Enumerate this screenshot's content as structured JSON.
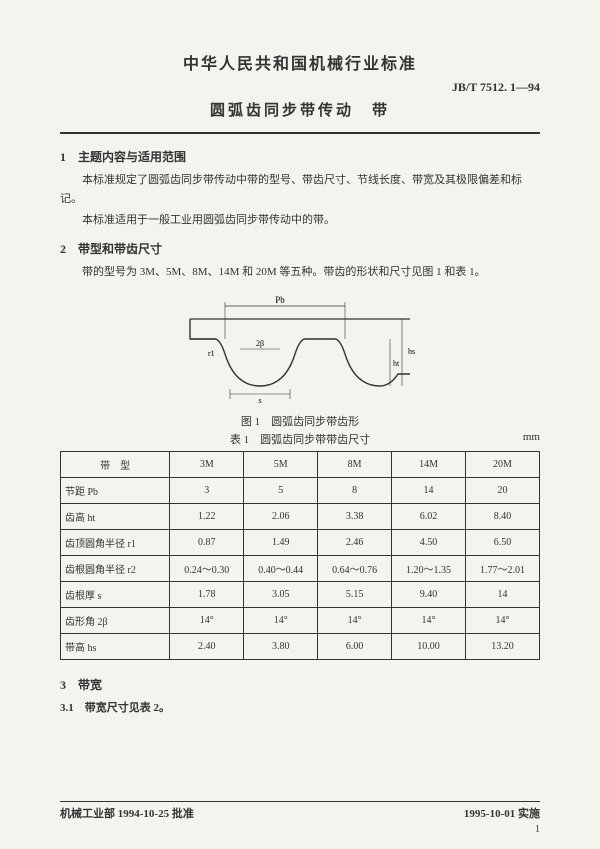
{
  "header": {
    "title_main": "中华人民共和国机械行业标准",
    "doc_code": "JB/T 7512. 1—94",
    "title_sub": "圆弧齿同步带传动　带"
  },
  "section1": {
    "head": "1　主题内容与适用范围",
    "p1": "本标准规定了圆弧齿同步带传动中带的型号、带齿尺寸、节线长度、带宽及其极限偏差和标记。",
    "p2": "本标准适用于一般工业用圆弧齿同步带传动中的带。"
  },
  "section2": {
    "head": "2　带型和带齿尺寸",
    "p1": "带的型号为 3M、5M、8M、14M 和 20M 等五种。带齿的形状和尺寸见图 1 和表 1。"
  },
  "figure": {
    "caption": "图 1　圆弧齿同步带齿形",
    "labels": {
      "pb": "Pb",
      "beta2": "2β",
      "s": "s",
      "ht": "ht",
      "hs": "hs",
      "r1": "r1",
      "r2": "r2"
    }
  },
  "table1": {
    "caption": "表 1　圆弧齿同步带带齿尺寸",
    "unit": "mm",
    "columns": [
      "带　型",
      "3M",
      "5M",
      "8M",
      "14M",
      "20M"
    ],
    "rows": [
      [
        "节距 Pb",
        "3",
        "5",
        "8",
        "14",
        "20"
      ],
      [
        "齿高 ht",
        "1.22",
        "2.06",
        "3.38",
        "6.02",
        "8.40"
      ],
      [
        "齿顶圆角半径 r1",
        "0.87",
        "1.49",
        "2.46",
        "4.50",
        "6.50"
      ],
      [
        "齿根圆角半径 r2",
        "0.24～0.30",
        "0.40～0.44",
        "0.64～0.76",
        "1.20～1.35",
        "1.77～2.01"
      ],
      [
        "齿根厚 s",
        "1.78",
        "3.05",
        "5.15",
        "9.40",
        "14"
      ],
      [
        "齿形角 2β",
        "14°",
        "14°",
        "14°",
        "14°",
        "14°"
      ],
      [
        "带高 hs",
        "2.40",
        "3.80",
        "6.00",
        "10.00",
        "13.20"
      ]
    ]
  },
  "section3": {
    "head": "3　带宽",
    "sub": "3.1　带宽尺寸见表 2。"
  },
  "footer": {
    "left": "机械工业部 1994-10-25 批准",
    "right": "1995-10-01 实施",
    "page": "1"
  }
}
